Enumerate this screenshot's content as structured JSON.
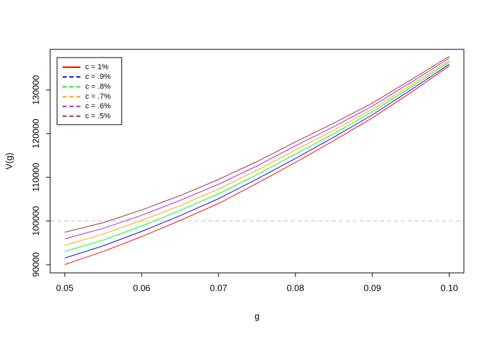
{
  "chart_data": {
    "type": "line",
    "xlabel": "g",
    "ylabel": "V(g)",
    "x": [
      0.05,
      0.055,
      0.06,
      0.065,
      0.07,
      0.075,
      0.08,
      0.085,
      0.09,
      0.095,
      0.1
    ],
    "series": [
      {
        "name": "c = 1%",
        "color": "#ff0000",
        "legend_linetype": "solid",
        "values": [
          90000,
          93000,
          96400,
          100100,
          104000,
          108600,
          113400,
          118400,
          123600,
          129400,
          135500
        ]
      },
      {
        "name": "c = .9%",
        "color": "#0000ff",
        "legend_linetype": "dashed",
        "values": [
          91500,
          94300,
          97600,
          101200,
          105100,
          109600,
          114300,
          119200,
          124300,
          130000,
          135900
        ]
      },
      {
        "name": "c = .8%",
        "color": "#00ff00",
        "legend_linetype": "dashed",
        "values": [
          93000,
          95600,
          98800,
          102400,
          106200,
          110600,
          115300,
          120000,
          125000,
          130600,
          136400
        ]
      },
      {
        "name": "c = .7%",
        "color": "#ffa500",
        "legend_linetype": "dashed",
        "values": [
          94400,
          97000,
          100100,
          103500,
          107300,
          111600,
          116200,
          120800,
          125600,
          131100,
          136800
        ]
      },
      {
        "name": "c = .6%",
        "color": "#a020f0",
        "legend_linetype": "dashed",
        "values": [
          95900,
          98300,
          101300,
          104700,
          108400,
          112600,
          117200,
          121600,
          126300,
          131700,
          137300
        ]
      },
      {
        "name": "c = .5%",
        "color": "#a52a2a",
        "legend_linetype": "dashed",
        "values": [
          97400,
          99600,
          102500,
          105800,
          109500,
          113600,
          118100,
          122400,
          127000,
          132300,
          137700
        ]
      }
    ],
    "xlim": [
      0.0481,
      0.1019
    ],
    "ylim": [
      88100,
      139300
    ],
    "xticks": [
      0.05,
      0.06,
      0.07,
      0.08,
      0.09,
      {
        "value": 0.1,
        "label": "0.10"
      }
    ],
    "yticks": [
      90000,
      100000,
      110000,
      120000,
      130000
    ],
    "hline": 100000,
    "hline_color": "#d3d3d3",
    "legend": "top-left"
  }
}
